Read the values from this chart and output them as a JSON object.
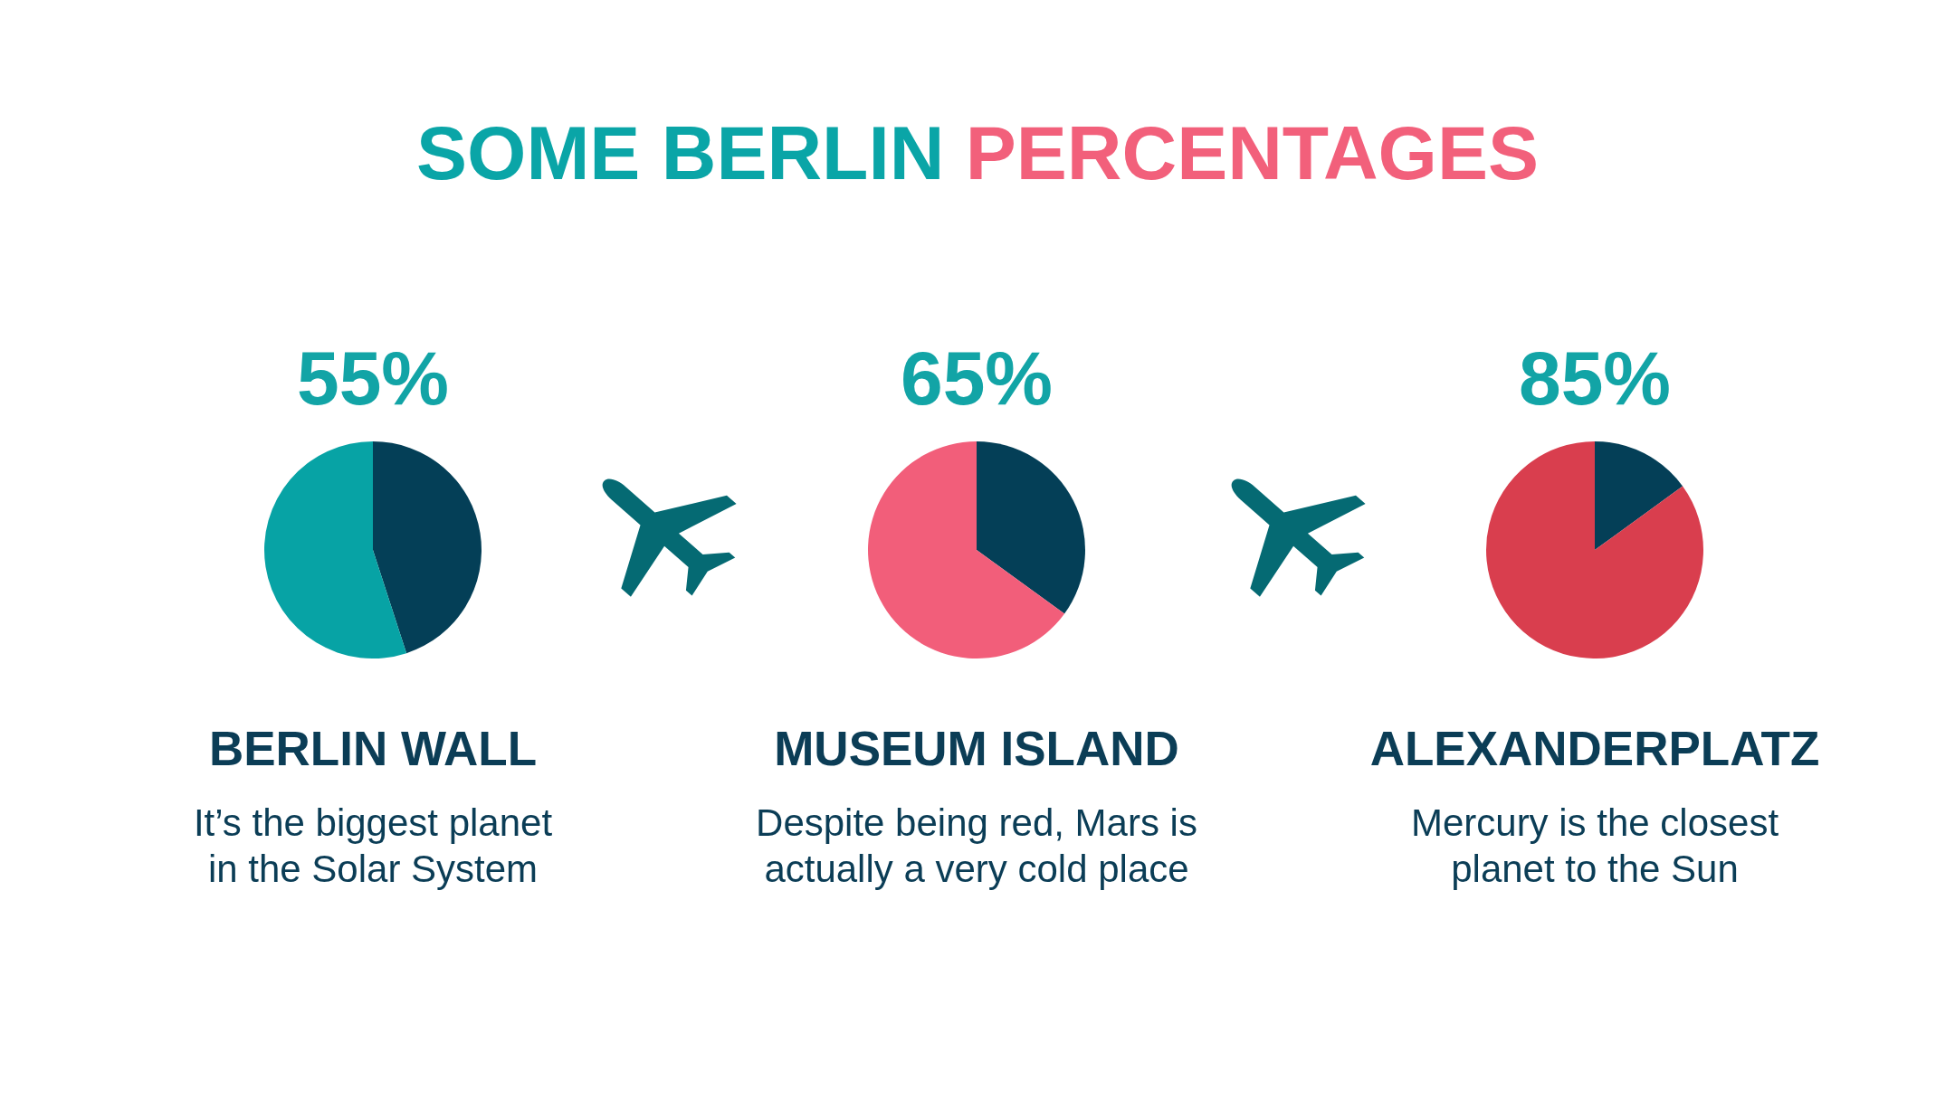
{
  "chart_data": [
    {
      "type": "other",
      "title": "SOME BERLIN PERCENTAGES"
    },
    {
      "type": "pie",
      "title": "BERLIN WALL",
      "subtitle": "It’s the biggest planet\nin the Solar System",
      "categories": [
        null,
        null
      ],
      "values": [
        45,
        55
      ],
      "colors": [
        "#043f57",
        "#07a3a5"
      ],
      "value_labels": [
        null,
        "55%"
      ]
    },
    {
      "type": "pie",
      "title": "MUSEUM ISLAND",
      "subtitle": "Despite being red, Mars is\nactually a very cold place",
      "categories": [
        null,
        null
      ],
      "values": [
        35,
        65
      ],
      "colors": [
        "#043f57",
        "#f25e7a"
      ],
      "value_labels": [
        null,
        "65%"
      ]
    },
    {
      "type": "pie",
      "title": "ALEXANDERPLATZ",
      "subtitle": "Mercury is the closest\nplanet to the Sun",
      "categories": [
        null,
        null
      ],
      "values": [
        15,
        85
      ],
      "colors": [
        "#043f57",
        "#d93e4e"
      ],
      "value_labels": [
        null,
        "85%"
      ]
    }
  ]
}
